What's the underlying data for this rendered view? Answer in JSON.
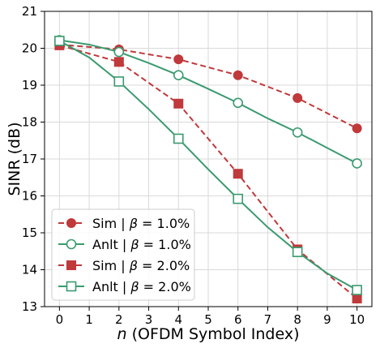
{
  "chart_data": {
    "type": "line",
    "xlabel_var": "n",
    "xlabel_rest": " (OFDM Symbol Index)",
    "ylabel": "SINR (dB)",
    "xlim": [
      -0.5,
      10.5
    ],
    "ylim": [
      13,
      21
    ],
    "xticks": [
      0,
      1,
      2,
      3,
      4,
      5,
      6,
      7,
      8,
      9,
      10
    ],
    "yticks": [
      13,
      14,
      15,
      16,
      17,
      18,
      19,
      20,
      21
    ],
    "grid": true,
    "legend_position": "bottom-left",
    "series": [
      {
        "name": "Sim | β = 1.0%",
        "legend_prefix": "Sim | ",
        "legend_suffix": " = 1.0%",
        "color": "#c0393b",
        "dash": "dashed",
        "marker": "circle",
        "filled": true,
        "x": [
          0,
          2,
          4,
          6,
          8,
          10
        ],
        "y": [
          20.1,
          19.97,
          19.7,
          19.27,
          18.65,
          17.83
        ]
      },
      {
        "name": "Anlt | β = 1.0%",
        "legend_prefix": "Anlt | ",
        "legend_suffix": " = 1.0%",
        "color": "#3a9a70",
        "dash": "solid",
        "marker": "circle",
        "filled": false,
        "x": [
          0,
          1,
          2,
          3,
          4,
          5,
          6,
          7,
          8,
          9,
          10
        ],
        "y": [
          20.22,
          20.1,
          19.9,
          19.6,
          19.27,
          18.9,
          18.52,
          18.1,
          17.72,
          17.3,
          16.88
        ],
        "marker_x": [
          0,
          2,
          4,
          6,
          8,
          10
        ]
      },
      {
        "name": "Sim | β = 2.0%",
        "legend_prefix": "Sim | ",
        "legend_suffix": " = 2.0%",
        "color": "#c0393b",
        "dash": "dashed",
        "marker": "square",
        "filled": true,
        "x": [
          0,
          2,
          4,
          6,
          8,
          10
        ],
        "y": [
          20.08,
          19.63,
          18.5,
          16.6,
          14.55,
          13.22
        ]
      },
      {
        "name": "Anlt | β = 2.0%",
        "legend_prefix": "Anlt | ",
        "legend_suffix": " = 2.0%",
        "color": "#3a9a70",
        "dash": "solid",
        "marker": "square",
        "filled": false,
        "x": [
          0,
          1,
          2,
          3,
          4,
          5,
          6,
          7,
          8,
          9,
          10
        ],
        "y": [
          20.2,
          19.75,
          19.1,
          18.35,
          17.55,
          16.72,
          15.92,
          15.15,
          14.48,
          13.9,
          13.45
        ],
        "marker_x": [
          0,
          2,
          4,
          6,
          8,
          10
        ]
      }
    ],
    "legend_greek": "β"
  }
}
